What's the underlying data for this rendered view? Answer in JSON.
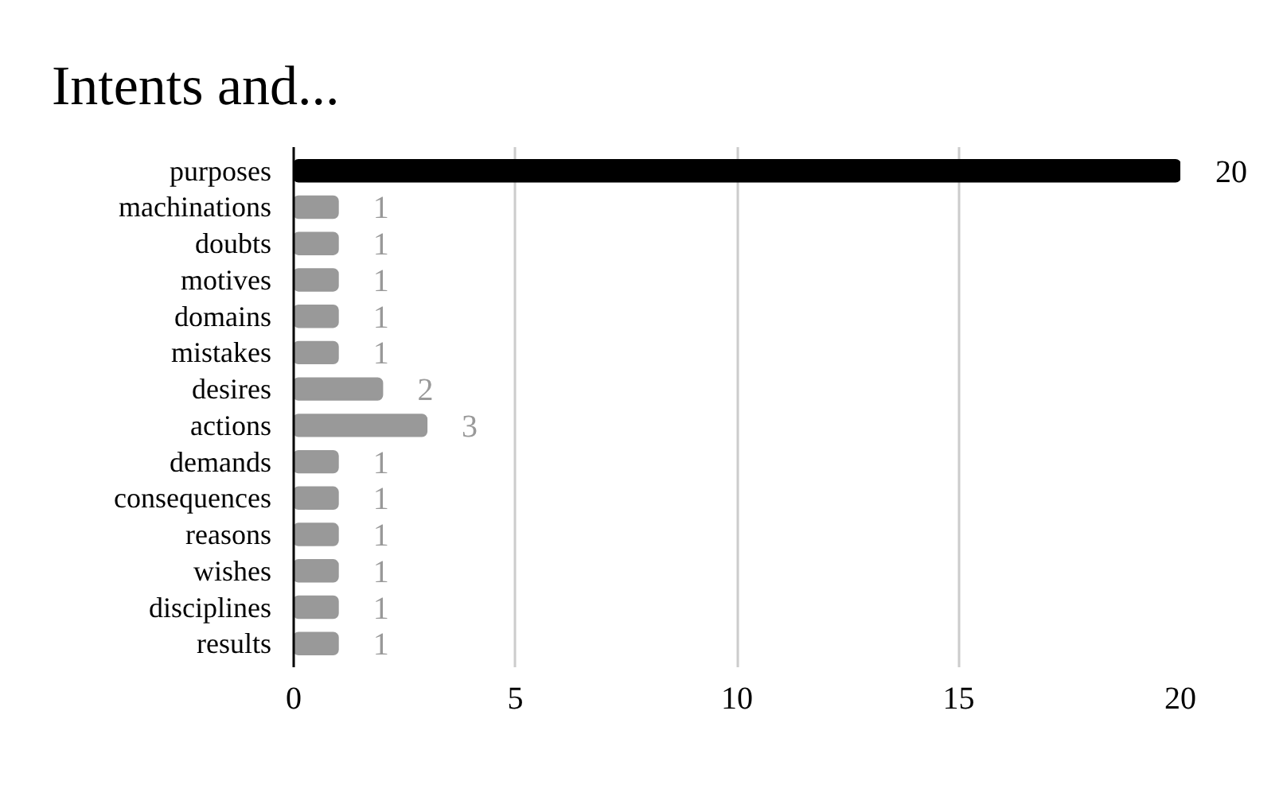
{
  "chart_data": {
    "type": "bar",
    "orientation": "horizontal",
    "title": "Intents and...",
    "categories": [
      "purposes",
      "machinations",
      "doubts",
      "motives",
      "domains",
      "mistakes",
      "desires",
      "actions",
      "demands",
      "consequences",
      "reasons",
      "wishes",
      "disciplines",
      "results"
    ],
    "values": [
      20,
      1,
      1,
      1,
      1,
      1,
      2,
      3,
      1,
      1,
      1,
      1,
      1,
      1
    ],
    "colors": [
      "#000000",
      "#999999",
      "#999999",
      "#999999",
      "#999999",
      "#999999",
      "#999999",
      "#999999",
      "#999999",
      "#999999",
      "#999999",
      "#999999",
      "#999999",
      "#999999"
    ],
    "xlim": [
      0,
      20
    ],
    "xticks": [
      0,
      5,
      10,
      15,
      20
    ],
    "grid": "x",
    "data_labels": true
  }
}
